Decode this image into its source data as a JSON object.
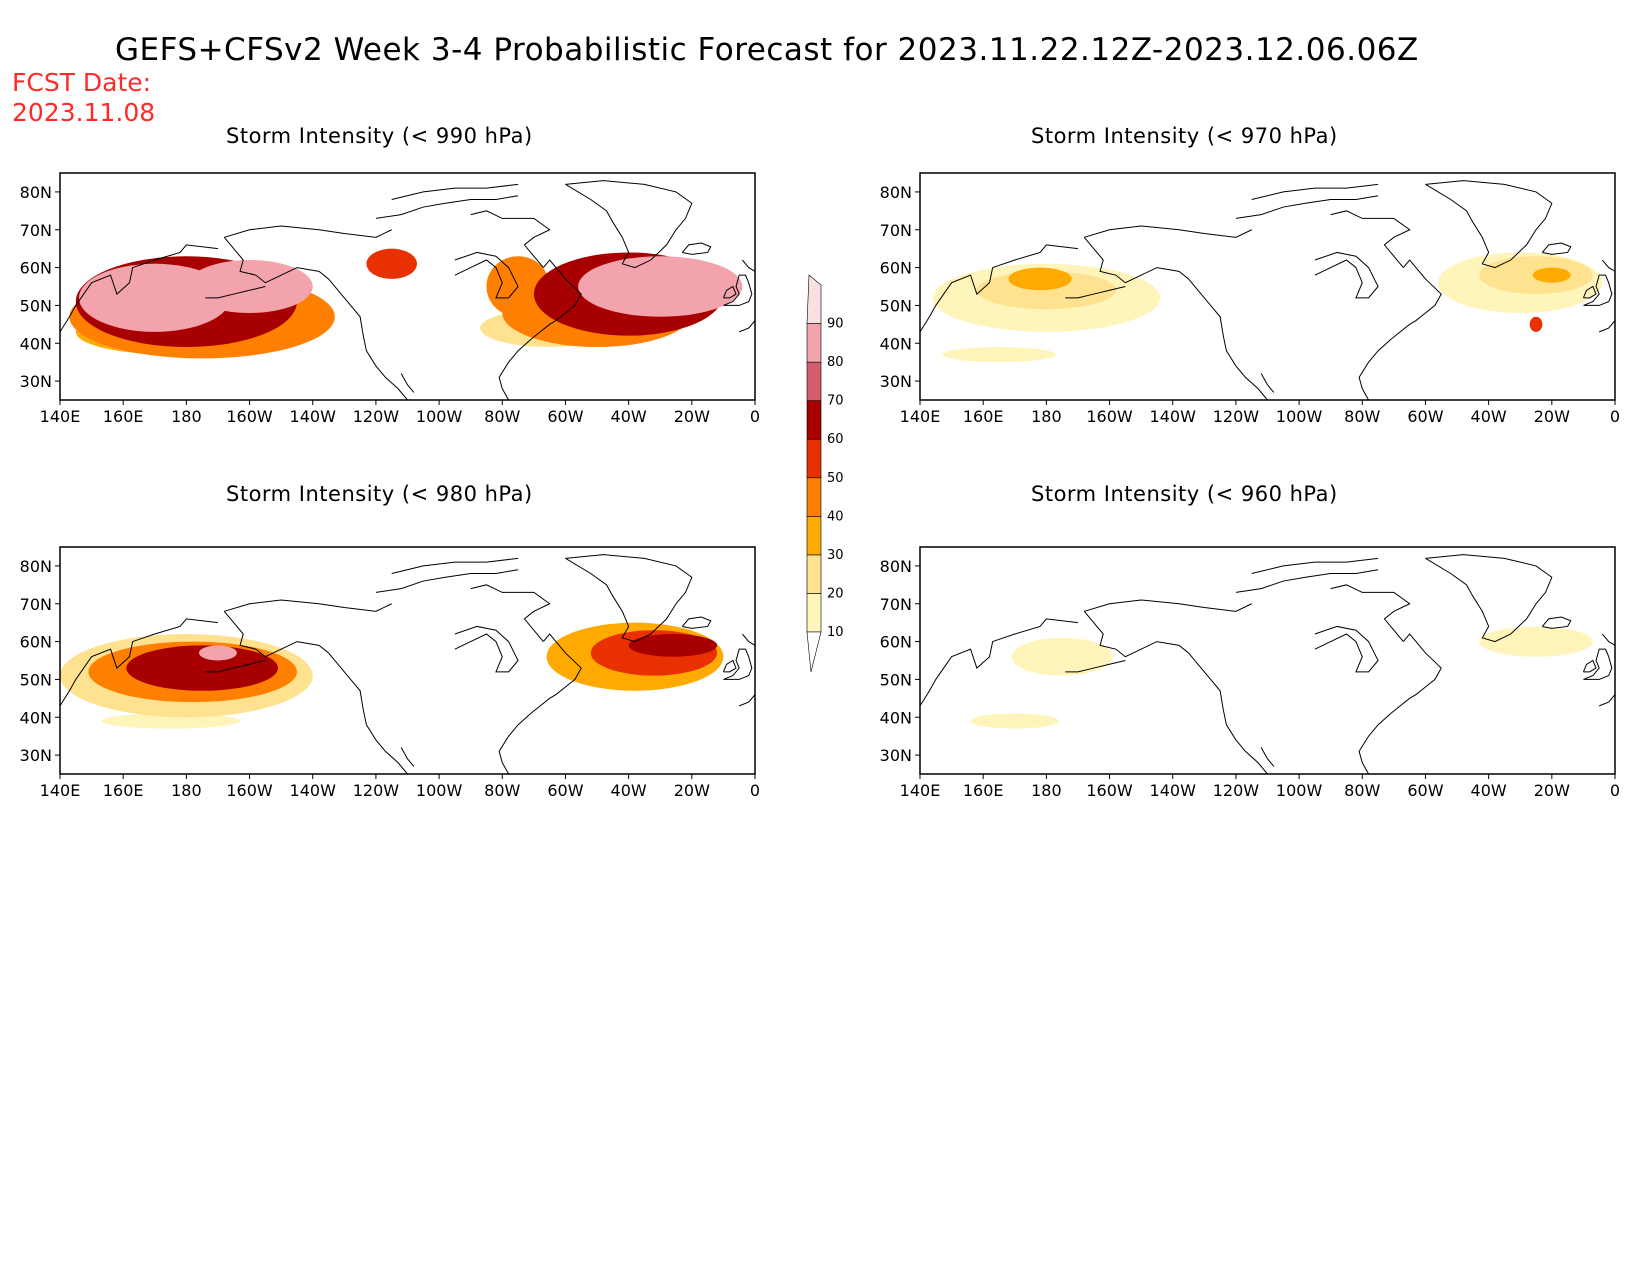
{
  "title": "GEFS+CFSv2 Week 3-4 Probabilistic Forecast for 2023.11.22.12Z-2023.12.06.06Z",
  "fcst": {
    "label": "FCST Date:",
    "date": "2023.11.08"
  },
  "x_ticks": [
    "140E",
    "160E",
    "180",
    "160W",
    "140W",
    "120W",
    "100W",
    "80W",
    "60W",
    "40W",
    "20W",
    "0"
  ],
  "y_ticks": [
    "80N",
    "70N",
    "60N",
    "50N",
    "40N",
    "30N"
  ],
  "colorbar": {
    "levels": [
      "10",
      "20",
      "30",
      "40",
      "50",
      "60",
      "70",
      "80",
      "90"
    ],
    "colors": [
      "#ffffff",
      "#fff5bb",
      "#fee290",
      "#ffaa00",
      "#ff7f00",
      "#e83000",
      "#a80000",
      "#d65d6e",
      "#f2a3ac",
      "#fbe0e3"
    ]
  },
  "chart_data": [
    {
      "type": "heatmap",
      "title": "Storm Intensity (< 990 hPa)",
      "xlim": [
        140,
        360
      ],
      "ylim": [
        25,
        85
      ],
      "blobs": [
        {
          "lon": 170,
          "lat": 52,
          "rx": 24,
          "ry": 9,
          "level": 8
        },
        {
          "lon": 200,
          "lat": 55,
          "rx": 20,
          "ry": 7,
          "level": 8
        },
        {
          "lon": 180,
          "lat": 51,
          "rx": 35,
          "ry": 12,
          "level": 6
        },
        {
          "lon": 185,
          "lat": 47,
          "rx": 42,
          "ry": 11,
          "level": 4
        },
        {
          "lon": 175,
          "lat": 43,
          "rx": 30,
          "ry": 6,
          "level": 3
        },
        {
          "lon": 285,
          "lat": 55,
          "rx": 10,
          "ry": 8,
          "level": 4
        },
        {
          "lon": 330,
          "lat": 55,
          "rx": 26,
          "ry": 8,
          "level": 8
        },
        {
          "lon": 320,
          "lat": 53,
          "rx": 30,
          "ry": 11,
          "level": 6
        },
        {
          "lon": 310,
          "lat": 48,
          "rx": 30,
          "ry": 9,
          "level": 4
        },
        {
          "lon": 245,
          "lat": 61,
          "rx": 8,
          "ry": 4,
          "level": 5
        },
        {
          "lon": 295,
          "lat": 44,
          "rx": 22,
          "ry": 5,
          "level": 2
        }
      ]
    },
    {
      "type": "heatmap",
      "title": "Storm Intensity (< 970 hPa)",
      "xlim": [
        140,
        360
      ],
      "ylim": [
        25,
        85
      ],
      "blobs": [
        {
          "lon": 180,
          "lat": 52,
          "rx": 36,
          "ry": 9,
          "level": 1
        },
        {
          "lon": 180,
          "lat": 54,
          "rx": 22,
          "ry": 5,
          "level": 2
        },
        {
          "lon": 178,
          "lat": 57,
          "rx": 10,
          "ry": 3,
          "level": 3
        },
        {
          "lon": 165,
          "lat": 37,
          "rx": 18,
          "ry": 2,
          "level": 1
        },
        {
          "lon": 330,
          "lat": 56,
          "rx": 26,
          "ry": 8,
          "level": 1
        },
        {
          "lon": 335,
          "lat": 58,
          "rx": 18,
          "ry": 5,
          "level": 2
        },
        {
          "lon": 340,
          "lat": 58,
          "rx": 6,
          "ry": 2,
          "level": 3
        },
        {
          "lon": 335,
          "lat": 45,
          "rx": 2,
          "ry": 2,
          "level": 5
        }
      ]
    },
    {
      "type": "heatmap",
      "title": "Storm Intensity (< 980 hPa)",
      "xlim": [
        140,
        360
      ],
      "ylim": [
        25,
        85
      ],
      "blobs": [
        {
          "lon": 180,
          "lat": 51,
          "rx": 40,
          "ry": 11,
          "level": 2
        },
        {
          "lon": 182,
          "lat": 52,
          "rx": 33,
          "ry": 8,
          "level": 4
        },
        {
          "lon": 185,
          "lat": 53,
          "rx": 24,
          "ry": 6,
          "level": 6
        },
        {
          "lon": 190,
          "lat": 57,
          "rx": 6,
          "ry": 2,
          "level": 8
        },
        {
          "lon": 175,
          "lat": 39,
          "rx": 22,
          "ry": 2,
          "level": 1
        },
        {
          "lon": 322,
          "lat": 56,
          "rx": 28,
          "ry": 9,
          "level": 3
        },
        {
          "lon": 328,
          "lat": 57,
          "rx": 20,
          "ry": 6,
          "level": 5
        },
        {
          "lon": 334,
          "lat": 59,
          "rx": 14,
          "ry": 3,
          "level": 6
        }
      ]
    },
    {
      "type": "heatmap",
      "title": "Storm Intensity (< 960 hPa)",
      "xlim": [
        140,
        360
      ],
      "ylim": [
        25,
        85
      ],
      "blobs": [
        {
          "lon": 185,
          "lat": 56,
          "rx": 16,
          "ry": 5,
          "level": 1
        },
        {
          "lon": 170,
          "lat": 39,
          "rx": 14,
          "ry": 2,
          "level": 1
        },
        {
          "lon": 335,
          "lat": 60,
          "rx": 18,
          "ry": 4,
          "level": 1
        }
      ]
    }
  ]
}
